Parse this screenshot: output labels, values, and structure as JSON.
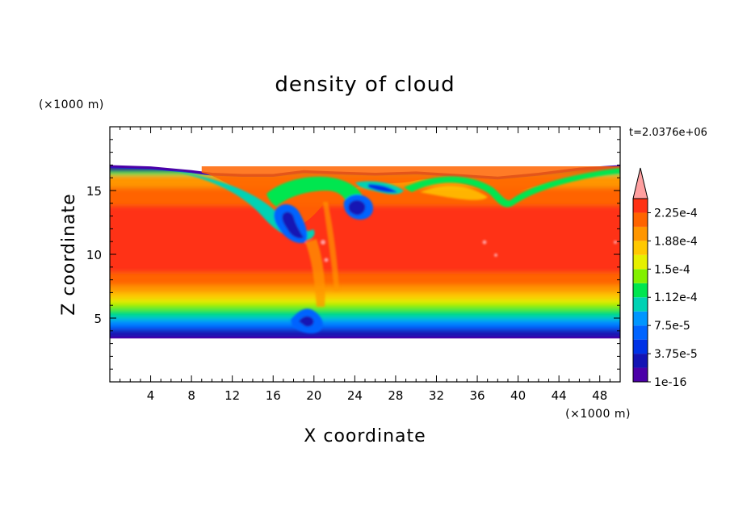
{
  "chart_data": {
    "type": "heatmap",
    "title": "density of cloud",
    "xlabel": "X coordinate",
    "ylabel": "Z coordinate",
    "x_unit": "(×1000 m)",
    "y_unit": "(×1000 m)",
    "time_label": "t=2.0376e+06",
    "xlim": [
      0,
      50
    ],
    "ylim": [
      0,
      20
    ],
    "x_ticks": [
      4,
      8,
      12,
      16,
      20,
      24,
      28,
      32,
      36,
      40,
      44,
      48
    ],
    "y_ticks": [
      5,
      10,
      15
    ],
    "colorbar": {
      "levels": [
        1e-16,
        1.875e-05,
        3.75e-05,
        5.625e-05,
        7.5e-05,
        9.375e-05,
        0.0001125,
        0.00013125,
        0.00015,
        0.00016875,
        0.0001875,
        0.00020625,
        0.000225,
        0.00024375
      ],
      "labels": [
        "1e-16",
        "3.75e-5",
        "7.5e-5",
        "1.12e-4",
        "1.5e-4",
        "1.88e-4",
        "2.25e-4"
      ],
      "label_levels": [
        1e-16,
        3.75e-05,
        7.5e-05,
        0.0001125,
        0.00015,
        0.0001875,
        0.000225
      ],
      "colors": [
        "#4b00a8",
        "#1414b4",
        "#0032e6",
        "#0064ff",
        "#0096ff",
        "#00d2b4",
        "#00e650",
        "#82f000",
        "#e6f000",
        "#ffc800",
        "#ff9600",
        "#ff6400",
        "#ff3214",
        "#ffa0a0"
      ],
      "extend": "max"
    },
    "grid": false,
    "description_data": {
      "cloud_base_z": 3.4,
      "cloud_top_z_edges": 16.9,
      "cloud_top_z_middle": 16.3
    }
  }
}
